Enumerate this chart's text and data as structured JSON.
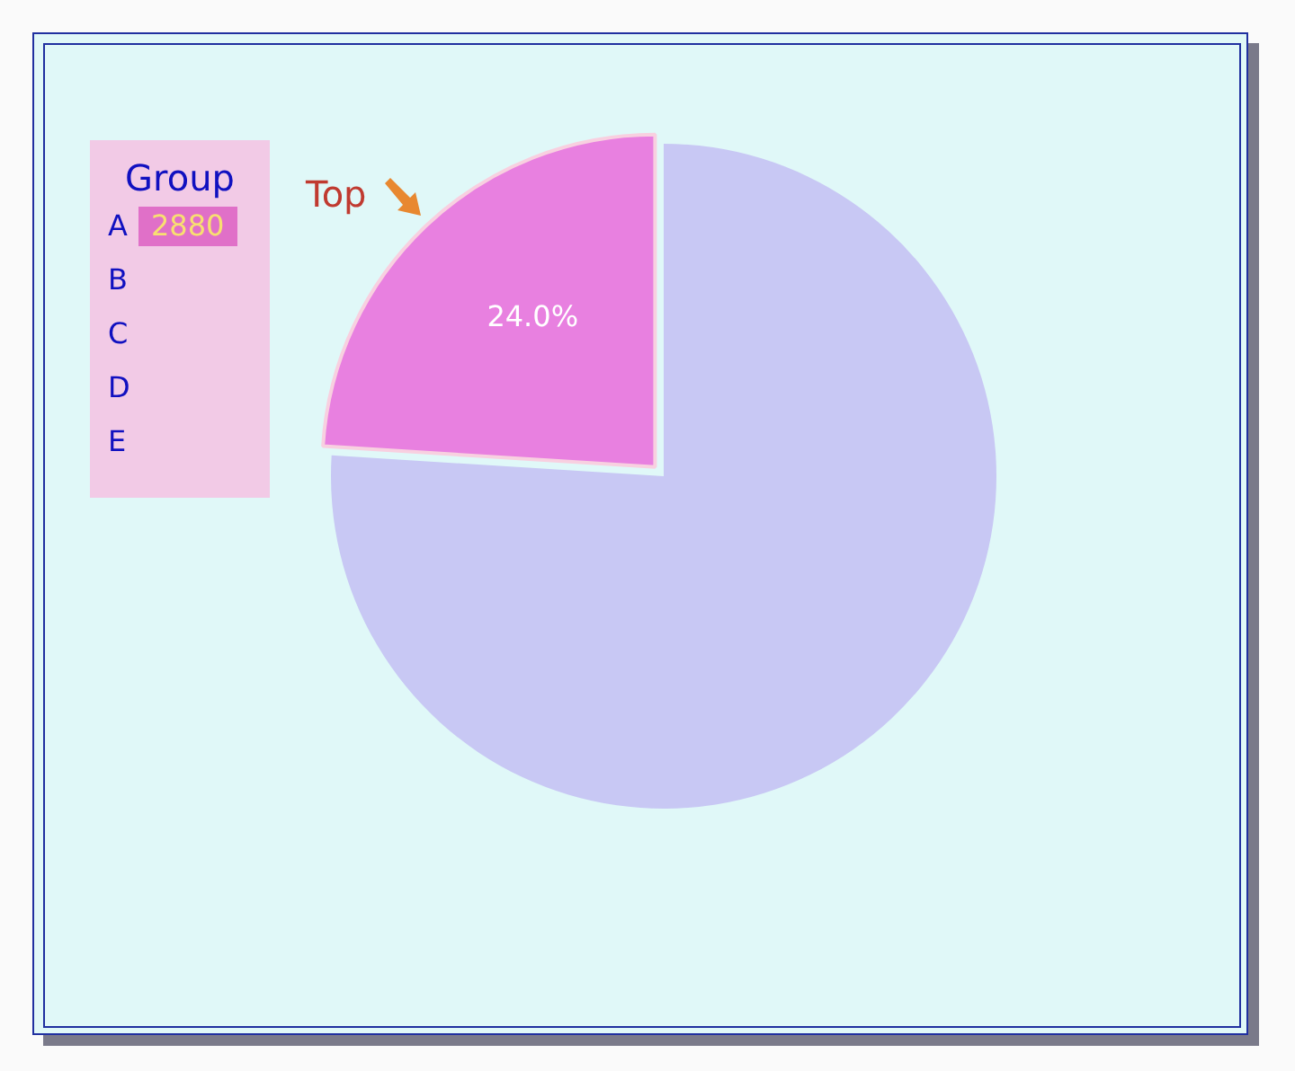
{
  "chart_data": {
    "type": "pie",
    "categories": [
      "A",
      null
    ],
    "values": [
      24,
      76
    ],
    "colors": [
      "#e880e0",
      "#c8c8f4"
    ],
    "value_labels": [
      "24.0%",
      null
    ],
    "legend_title": "Group",
    "annotations": [
      "Top",
      "2880",
      "B",
      "C",
      "D",
      "E"
    ]
  }
}
